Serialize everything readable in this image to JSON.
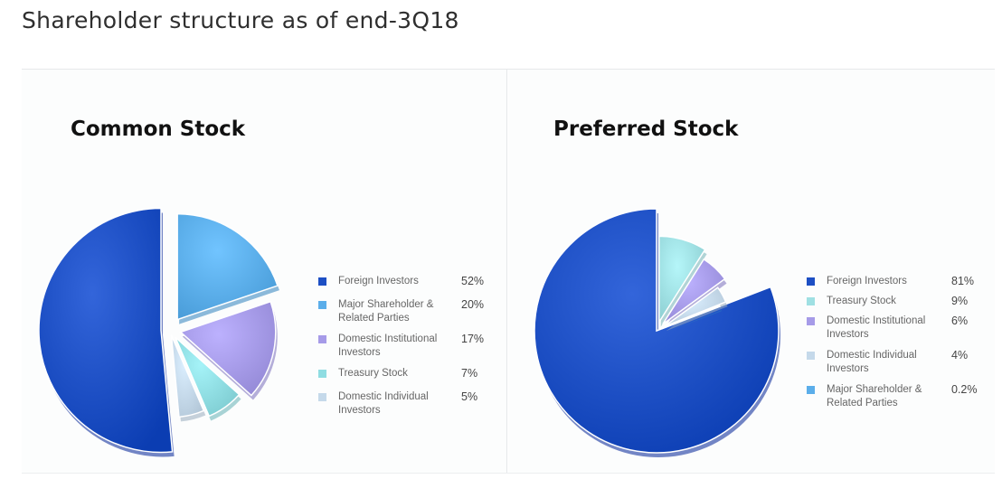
{
  "page": {
    "title": "Shareholder structure as of end-3Q18"
  },
  "chart_data": [
    {
      "type": "pie",
      "title": "Common Stock",
      "categories": [
        "Foreign Investors",
        "Major Shareholder & Related Parties",
        "Domestic Institutional Investors",
        "Treasury Stock",
        "Domestic Individual Investors"
      ],
      "values": [
        52,
        20,
        17,
        7,
        5
      ],
      "value_labels": [
        "52%",
        "20%",
        "17%",
        "7%",
        "5%"
      ],
      "colors": [
        "#1d4fc4",
        "#5baeea",
        "#a69be8",
        "#8fdde2",
        "#c5d9ea"
      ],
      "legend": "right"
    },
    {
      "type": "pie",
      "title": "Preferred Stock",
      "categories": [
        "Foreign Investors",
        "Treasury Stock",
        "Domestic Institutional Investors",
        "Domestic Individual Investors",
        "Major Shareholder & Related Parties"
      ],
      "values": [
        81,
        9,
        6,
        4,
        0.2
      ],
      "value_labels": [
        "81%",
        "9%",
        "6%",
        "4%",
        "0.2%"
      ],
      "colors": [
        "#1d4fc4",
        "#9fe0e3",
        "#a69be8",
        "#c5d9ea",
        "#5baeea"
      ],
      "legend": "right"
    }
  ]
}
